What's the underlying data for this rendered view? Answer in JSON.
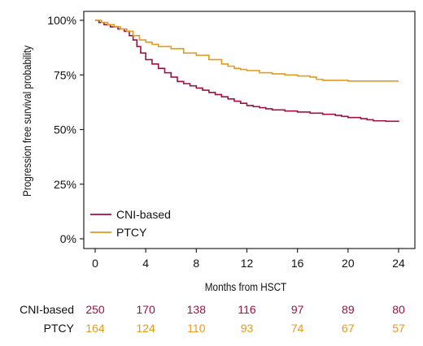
{
  "chart_data": {
    "type": "line",
    "step": true,
    "title": "",
    "xlabel": "Months from HSCT",
    "ylabel": "Progression free survival probability",
    "xlim": [
      0,
      24
    ],
    "ylim": [
      0,
      1
    ],
    "x_ticks": [
      0,
      4,
      8,
      12,
      16,
      20,
      24
    ],
    "x_tick_labels": [
      "0",
      "4",
      "8",
      "12",
      "16",
      "20",
      "24"
    ],
    "y_ticks": [
      0,
      0.25,
      0.5,
      0.75,
      1
    ],
    "y_tick_labels": [
      "0%",
      "25%",
      "50%",
      "75%",
      "100%"
    ],
    "grid": false,
    "legend_position": "bottom-left",
    "series": [
      {
        "name": "CNI-based",
        "color": "#a0103c",
        "x": [
          0,
          0.3,
          0.7,
          1.2,
          1.8,
          2.3,
          2.7,
          3.0,
          3.3,
          3.6,
          4.0,
          4.5,
          5.0,
          5.5,
          6.0,
          6.5,
          7.0,
          7.5,
          8.0,
          8.5,
          9.0,
          9.5,
          10.0,
          10.5,
          11.0,
          11.5,
          12.0,
          12.5,
          13.0,
          13.5,
          14.0,
          15.0,
          16.0,
          17.0,
          18.0,
          19.0,
          19.5,
          20.0,
          21.0,
          21.5,
          22.0,
          23.0,
          24.0
        ],
        "y": [
          1.0,
          0.99,
          0.98,
          0.97,
          0.96,
          0.95,
          0.93,
          0.91,
          0.88,
          0.85,
          0.82,
          0.8,
          0.78,
          0.76,
          0.74,
          0.72,
          0.71,
          0.7,
          0.69,
          0.68,
          0.67,
          0.66,
          0.65,
          0.64,
          0.63,
          0.62,
          0.61,
          0.605,
          0.6,
          0.595,
          0.59,
          0.585,
          0.58,
          0.575,
          0.57,
          0.565,
          0.56,
          0.555,
          0.55,
          0.545,
          0.54,
          0.538,
          0.535
        ]
      },
      {
        "name": "PTCY",
        "color": "#e59a1c",
        "x": [
          0,
          0.5,
          1.0,
          1.5,
          2.0,
          2.5,
          3.0,
          3.5,
          4.0,
          4.5,
          5.0,
          6.0,
          7.0,
          8.0,
          9.0,
          10.0,
          10.5,
          11.0,
          11.5,
          12.0,
          13.0,
          14.0,
          15.0,
          16.0,
          17.0,
          17.5,
          18.0,
          20.0,
          22.0,
          24.0
        ],
        "y": [
          1.0,
          0.99,
          0.98,
          0.97,
          0.96,
          0.95,
          0.93,
          0.91,
          0.9,
          0.89,
          0.88,
          0.87,
          0.85,
          0.84,
          0.82,
          0.8,
          0.79,
          0.78,
          0.775,
          0.77,
          0.76,
          0.755,
          0.75,
          0.745,
          0.74,
          0.73,
          0.725,
          0.722,
          0.722,
          0.722
        ]
      }
    ],
    "risk_table": {
      "times": [
        0,
        4,
        8,
        12,
        16,
        20,
        24
      ],
      "rows": [
        {
          "label": "CNI-based",
          "color": "#a0103c",
          "values": [
            "250",
            "170",
            "138",
            "116",
            "97",
            "89",
            "80"
          ]
        },
        {
          "label": "PTCY",
          "color": "#e59a1c",
          "values": [
            "164",
            "124",
            "110",
            "93",
            "74",
            "67",
            "57"
          ]
        }
      ]
    }
  }
}
